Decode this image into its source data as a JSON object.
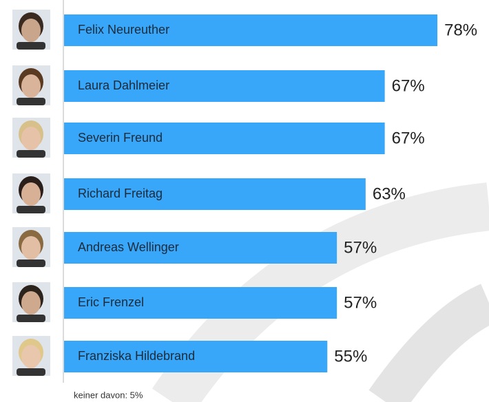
{
  "chart_data": {
    "type": "bar",
    "orientation": "horizontal",
    "categories": [
      "Felix Neureuther",
      "Laura Dahlmeier",
      "Severin Freund",
      "Richard Freitag",
      "Andreas Wellinger",
      "Eric Frenzel",
      "Franziska Hildebrand"
    ],
    "values": [
      78,
      67,
      67,
      63,
      57,
      57,
      55
    ],
    "value_labels": [
      "78%",
      "67%",
      "67%",
      "63%",
      "57%",
      "57%",
      "55%"
    ],
    "color": "#38a6f9",
    "note": "keiner davon:  5%"
  }
}
